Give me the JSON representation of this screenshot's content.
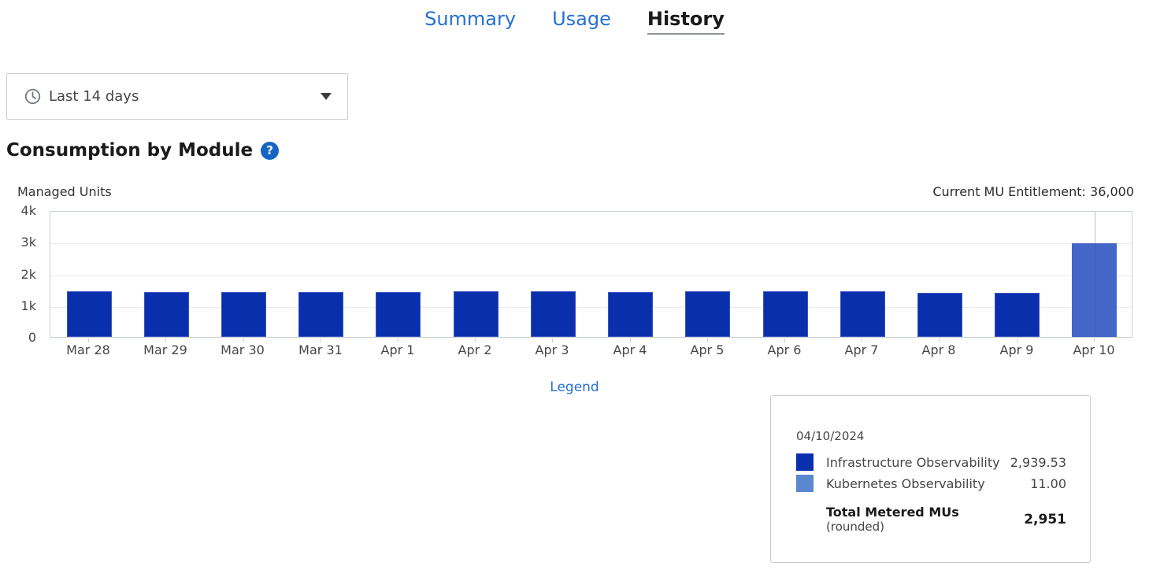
{
  "tabs": {
    "items": [
      {
        "label": "Summary"
      },
      {
        "label": "Usage"
      },
      {
        "label": "History"
      }
    ],
    "active": "History"
  },
  "filter_dropdown": {
    "value": "Last 14 days",
    "icon": "clock-icon"
  },
  "section": {
    "title": "Consumption by Module",
    "help_icon_glyph": "?"
  },
  "chart_data": {
    "type": "bar",
    "title": "Consumption by Module",
    "ylabel": "Managed Units",
    "annotation": "Current MU Entitlement: 36,000",
    "ylim": [
      0,
      4000
    ],
    "ytick_labels": [
      "4k",
      "3k",
      "2k",
      "1k",
      "0"
    ],
    "grid": "horizontal",
    "legend_position": "hidden",
    "categories": [
      "Mar 28",
      "Mar 29",
      "Mar 30",
      "Mar 31",
      "Apr 1",
      "Apr 2",
      "Apr 3",
      "Apr 4",
      "Apr 5",
      "Apr 6",
      "Apr 7",
      "Apr 8",
      "Apr 9",
      "Apr 10"
    ],
    "series": [
      {
        "name": "Infrastructure Observability",
        "color": "#0a2fad",
        "values": [
          1430,
          1420,
          1420,
          1420,
          1420,
          1450,
          1450,
          1425,
          1430,
          1430,
          1440,
          1400,
          1400,
          2939.53
        ]
      },
      {
        "name": "Kubernetes Observability",
        "color": "#5b87cf",
        "values": [
          0,
          0,
          0,
          0,
          0,
          0,
          0,
          0,
          0,
          0,
          0,
          0,
          0,
          11
        ]
      }
    ],
    "highlighted_category": "Apr 10",
    "highlight_color": "#4466c8"
  },
  "legend_link": {
    "label": "Legend"
  },
  "tooltip": {
    "date": "04/10/2024",
    "rows": [
      {
        "label": "Infrastructure Observability",
        "value": "2,939.53",
        "color": "#0a2fad"
      },
      {
        "label": "Kubernetes Observability",
        "value": "11.00",
        "color": "#5b87cf"
      }
    ],
    "total": {
      "label": "Total Metered MUs",
      "sublabel": "(rounded)",
      "value": "2,951"
    }
  },
  "colors": {
    "link": "#2570d2",
    "bar": "#0a2fad",
    "bar_highlight": "#4466c8",
    "active_tab_text": "#1a1a1a"
  }
}
